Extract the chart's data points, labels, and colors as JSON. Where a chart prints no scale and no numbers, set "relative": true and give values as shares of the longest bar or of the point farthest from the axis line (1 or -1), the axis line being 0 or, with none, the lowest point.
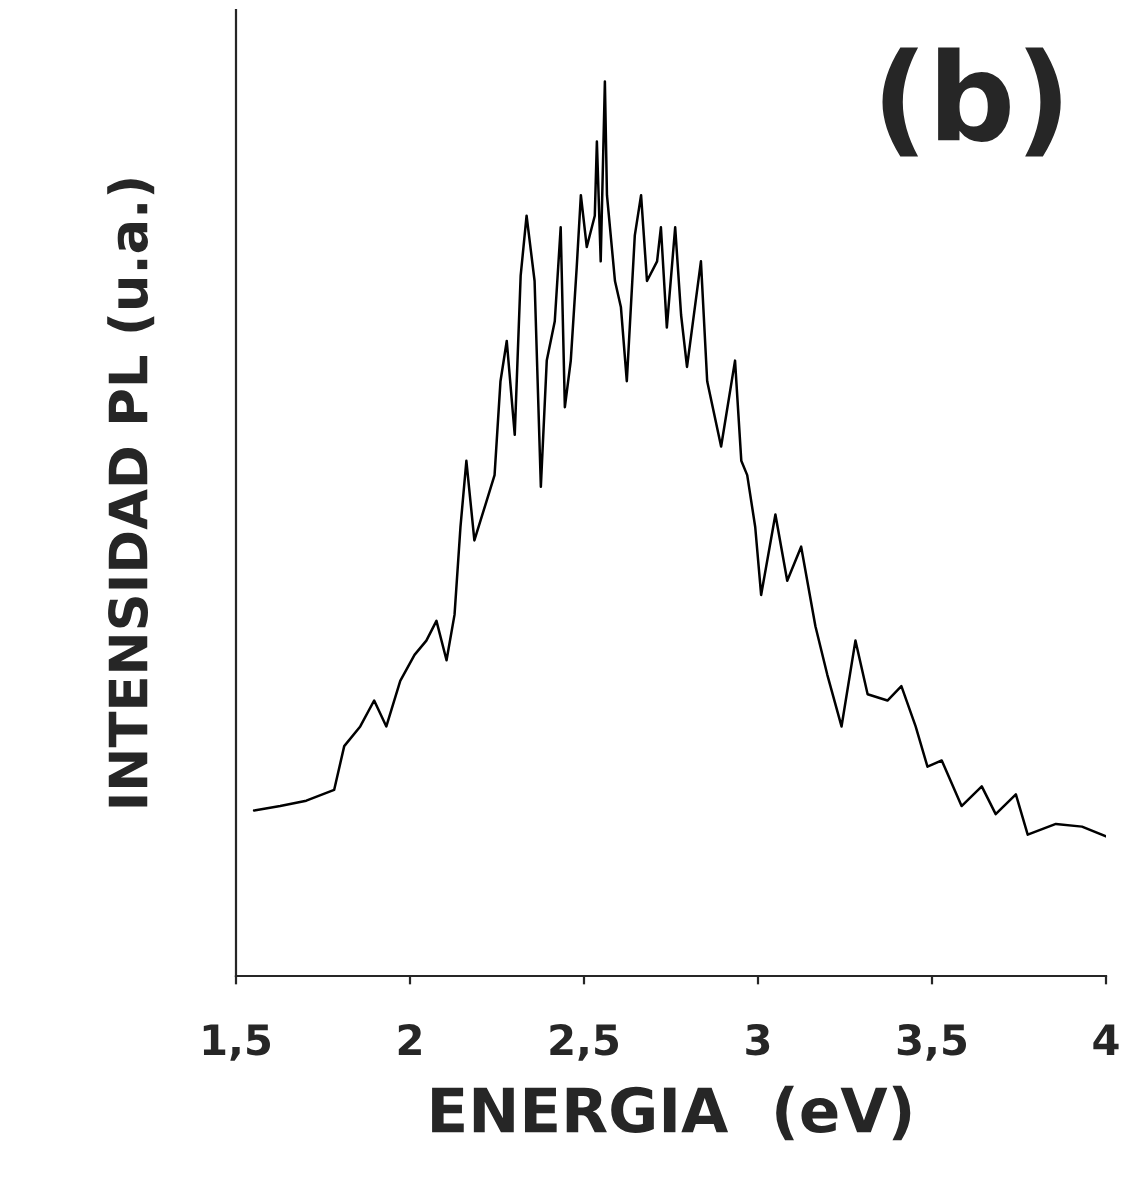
{
  "chart_data": {
    "type": "line",
    "relative": true,
    "xlabel": "ENERGIA  (eV)",
    "ylabel": "INTENSIDAD PL (u.a.)",
    "annotations": [
      "(b)"
    ],
    "xlim": [
      1.5,
      4
    ],
    "xticks": [
      {
        "value": 1.5,
        "label": "1,5"
      },
      2,
      {
        "value": 2.5,
        "label": "2,5"
      },
      3,
      {
        "value": 3.5,
        "label": "3,5"
      },
      4
    ],
    "marker": "none",
    "line_style": "solid",
    "x": [
      1.552,
      1.627,
      1.702,
      1.782,
      1.811,
      1.857,
      1.897,
      1.932,
      1.972,
      2.013,
      2.047,
      2.076,
      2.105,
      2.128,
      2.145,
      2.162,
      2.185,
      2.22,
      2.243,
      2.26,
      2.278,
      2.301,
      2.318,
      2.335,
      2.358,
      2.376,
      2.393,
      2.416,
      2.433,
      2.445,
      2.462,
      2.479,
      2.491,
      2.508,
      2.531,
      2.537,
      2.548,
      2.56,
      2.566,
      2.589,
      2.606,
      2.623,
      2.646,
      2.664,
      2.681,
      2.71,
      2.721,
      2.738,
      2.762,
      2.779,
      2.796,
      2.836,
      2.854,
      2.894,
      2.934,
      2.952,
      2.969,
      2.992,
      3.009,
      3.05,
      3.084,
      3.124,
      3.165,
      3.199,
      3.24,
      3.28,
      3.315,
      3.372,
      3.412,
      3.453,
      3.487,
      3.528,
      3.585,
      3.643,
      3.683,
      3.741,
      3.775,
      3.856,
      3.931,
      4.0
    ],
    "series": [
      {
        "color": "#000000",
        "values": [
          0.185,
          0.19,
          0.196,
          0.208,
          0.257,
          0.279,
          0.308,
          0.279,
          0.33,
          0.359,
          0.375,
          0.397,
          0.353,
          0.404,
          0.502,
          0.576,
          0.487,
          0.531,
          0.56,
          0.665,
          0.71,
          0.605,
          0.783,
          0.85,
          0.777,
          0.547,
          0.688,
          0.732,
          0.837,
          0.636,
          0.688,
          0.792,
          0.873,
          0.815,
          0.85,
          0.933,
          0.799,
          1.0,
          0.873,
          0.777,
          0.748,
          0.665,
          0.828,
          0.873,
          0.777,
          0.799,
          0.837,
          0.725,
          0.837,
          0.739,
          0.681,
          0.799,
          0.665,
          0.592,
          0.688,
          0.576,
          0.56,
          0.502,
          0.426,
          0.516,
          0.442,
          0.48,
          0.391,
          0.337,
          0.279,
          0.375,
          0.315,
          0.308,
          0.324,
          0.279,
          0.234,
          0.241,
          0.19,
          0.212,
          0.181,
          0.203,
          0.158,
          0.17,
          0.167,
          0.156
        ]
      }
    ]
  }
}
